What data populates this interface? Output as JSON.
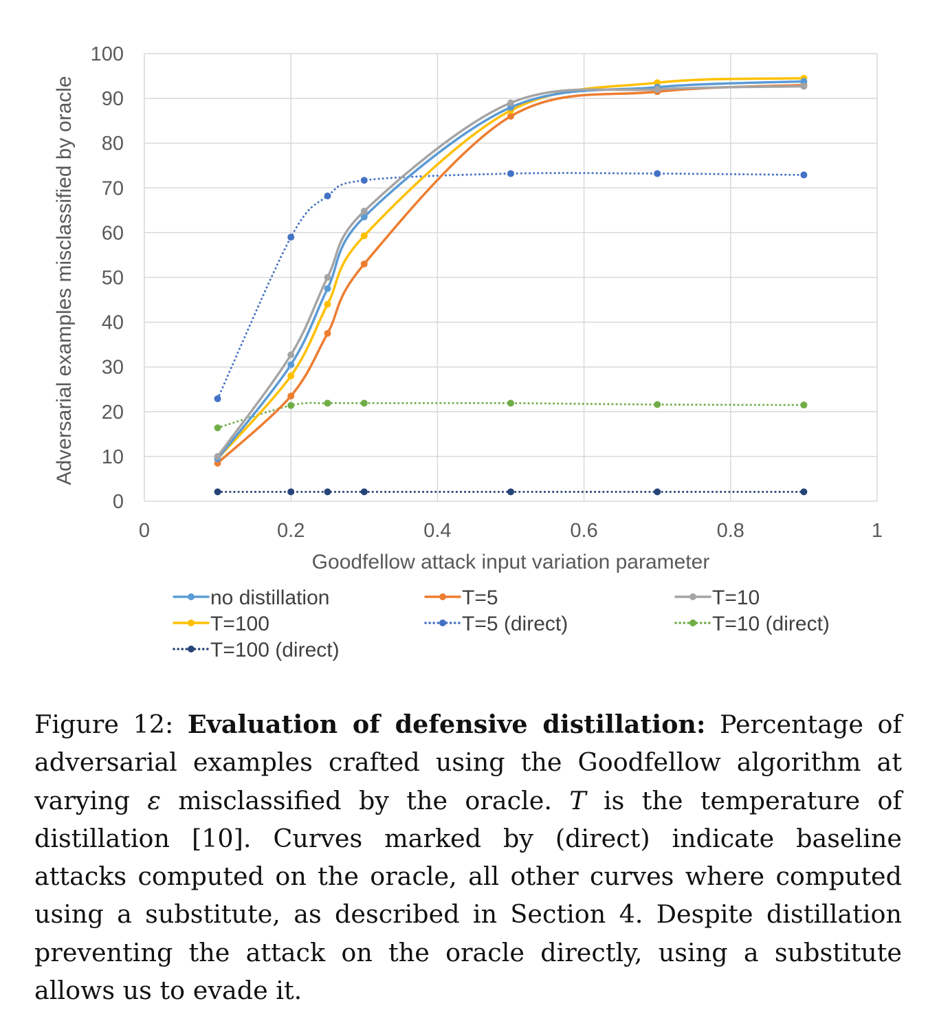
{
  "chart_data": {
    "type": "line",
    "xlabel": "Goodfellow attack input variation parameter",
    "ylabel": "Adversarial examples misclassified by oracle",
    "xlim": [
      0,
      1
    ],
    "ylim": [
      0,
      100
    ],
    "xticks": [
      "0",
      "0.2",
      "0.4",
      "0.6",
      "0.8",
      "1"
    ],
    "yticks": [
      "0",
      "10",
      "20",
      "30",
      "40",
      "50",
      "60",
      "70",
      "80",
      "90",
      "100"
    ],
    "grid": true,
    "legend_position": "bottom",
    "x": [
      0.1,
      0.2,
      0.25,
      0.3,
      0.5,
      0.7,
      0.9
    ],
    "series": [
      {
        "name": "no distillation",
        "color": "#5b9bd5",
        "style": "solid",
        "values": [
          9.5,
          30.5,
          47.5,
          63.5,
          88,
          92.5,
          93.8
        ]
      },
      {
        "name": "T=5",
        "color": "#ed7d31",
        "style": "solid",
        "values": [
          8.5,
          23.5,
          37.5,
          53,
          86,
          91.5,
          93
        ]
      },
      {
        "name": "T=10",
        "color": "#a5a5a5",
        "style": "solid",
        "values": [
          10,
          32.7,
          50,
          64.8,
          89,
          92,
          92.7
        ]
      },
      {
        "name": "T=100",
        "color": "#ffc000",
        "style": "solid",
        "values": [
          9.5,
          28,
          44,
          59.3,
          87.3,
          93.5,
          94.5
        ]
      },
      {
        "name": "T=5 (direct)",
        "color": "#4472c4",
        "style": "dotted",
        "values": [
          22.9,
          59,
          68.2,
          71.7,
          73.2,
          73.2,
          72.9
        ]
      },
      {
        "name": "T=10 (direct)",
        "color": "#70ad47",
        "style": "dotted",
        "values": [
          16.4,
          21.4,
          21.9,
          21.9,
          21.9,
          21.6,
          21.5
        ]
      },
      {
        "name": "T=100 (direct)",
        "color": "#264478",
        "style": "dotted",
        "values": [
          2.1,
          2.1,
          2.1,
          2.1,
          2.1,
          2.1,
          2.1
        ]
      }
    ]
  },
  "caption": {
    "prefix": "Figure 12: ",
    "bold": "Evaluation of defensive distillation:",
    "seg1": " Percentage of adversarial examples crafted using the Goodfellow algorithm at varying ",
    "epsilon": "ε",
    "seg2": " misclassified by the oracle. ",
    "temp_symbol": "T",
    "seg3": " is the temperature of distillation [10]. Curves marked by (direct) indicate baseline attacks computed on the oracle, all other curves where computed using a substitute, as described in Section 4. Despite distillation preventing the attack on the oracle directly, using a substitute allows us to evade it."
  }
}
